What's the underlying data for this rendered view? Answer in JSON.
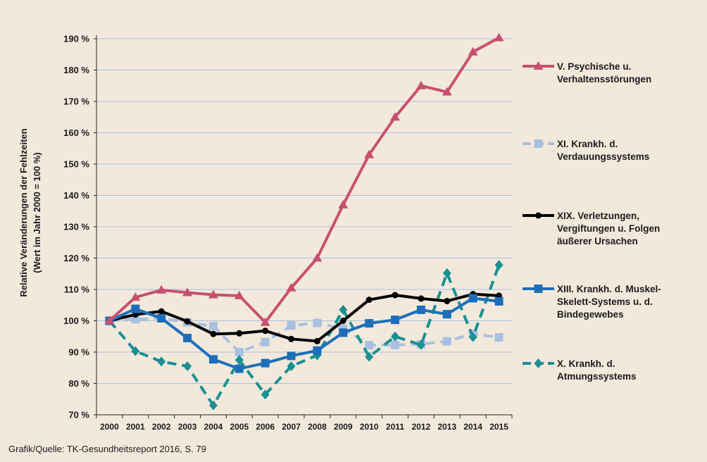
{
  "chart_data": {
    "type": "line",
    "ylabel_lines": [
      "Relative Veränderungen der Fehlzeiten",
      "(Wert im Jahr 2000 = 100 %)"
    ],
    "ylim": [
      70,
      190
    ],
    "y_ticks": [
      70,
      80,
      90,
      100,
      110,
      120,
      130,
      140,
      150,
      160,
      170,
      180,
      190
    ],
    "y_tick_suffix": " %",
    "x": [
      "2000",
      "2001",
      "2002",
      "2003",
      "2004",
      "2005",
      "2006",
      "2007",
      "2008",
      "2009",
      "2010",
      "2011",
      "2012",
      "2013",
      "2014",
      "2015"
    ],
    "grid": "horizontal",
    "legend_position": "right",
    "series": [
      {
        "name": "V. Psychische u. Verhaltensstörungen",
        "legend_lines": [
          "V. Psychische u.",
          "Verhaltensstörungen"
        ],
        "color": "#c8506e",
        "dash": "solid",
        "marker": "triangle",
        "values": [
          100,
          107.5,
          109.8,
          109,
          108.3,
          108,
          99.5,
          110.5,
          120,
          137,
          153,
          165,
          175,
          173,
          185.8,
          190.3
        ]
      },
      {
        "name": "XI. Krankh. d. Verdauungssystems",
        "legend_lines": [
          "XI. Krankh. d.",
          "Verdauungssystems"
        ],
        "color": "#a9bfdf",
        "dash": "dashed",
        "marker": "square",
        "values": [
          100,
          100.5,
          100.8,
          99.5,
          98.3,
          90,
          93.2,
          98.5,
          99.3,
          97.5,
          92.2,
          92.3,
          92.5,
          93.5,
          95.8,
          94.7
        ]
      },
      {
        "name": "XIX. Verletzungen, Vergiftungen u. Folgen äußerer Ursachen",
        "legend_lines": [
          "XIX. Verletzungen,",
          "Vergiftungen u. Folgen",
          "äußerer Ursachen"
        ],
        "color": "#000000",
        "dash": "solid",
        "marker": "circle",
        "values": [
          100,
          102,
          103,
          99.8,
          95.8,
          96,
          96.8,
          94.2,
          93.5,
          100,
          106.7,
          108.2,
          107.1,
          106.3,
          108.5,
          108
        ]
      },
      {
        "name": "XIII. Krankh. d. Muskel-Skelett-Systems u. d. Bindegewebes",
        "legend_lines": [
          "XIII. Krankh. d. Muskel-",
          "Skelett-Systems u. d.",
          "Bindegewebes"
        ],
        "color": "#1d6eb8",
        "dash": "solid",
        "marker": "square",
        "values": [
          100,
          103.8,
          100.8,
          94.5,
          87.7,
          84.7,
          86.5,
          88.8,
          90.5,
          96.2,
          99.2,
          100.3,
          103.5,
          102.1,
          107.2,
          106.2
        ]
      },
      {
        "name": "X. Krankh. d. Atmungssystems",
        "legend_lines": [
          "X. Krankh. d.",
          "Atmungssystems"
        ],
        "color": "#1a9090",
        "dash": "dashed",
        "marker": "diamond",
        "values": [
          100,
          90.3,
          87,
          85.5,
          73,
          87.5,
          76.5,
          85.5,
          89,
          103.5,
          88.5,
          95,
          92.3,
          115.2,
          94.8,
          117.8
        ]
      }
    ]
  },
  "source_text": "Grafik/Quelle: TK-Gesundheitsreport 2016, S. 79"
}
